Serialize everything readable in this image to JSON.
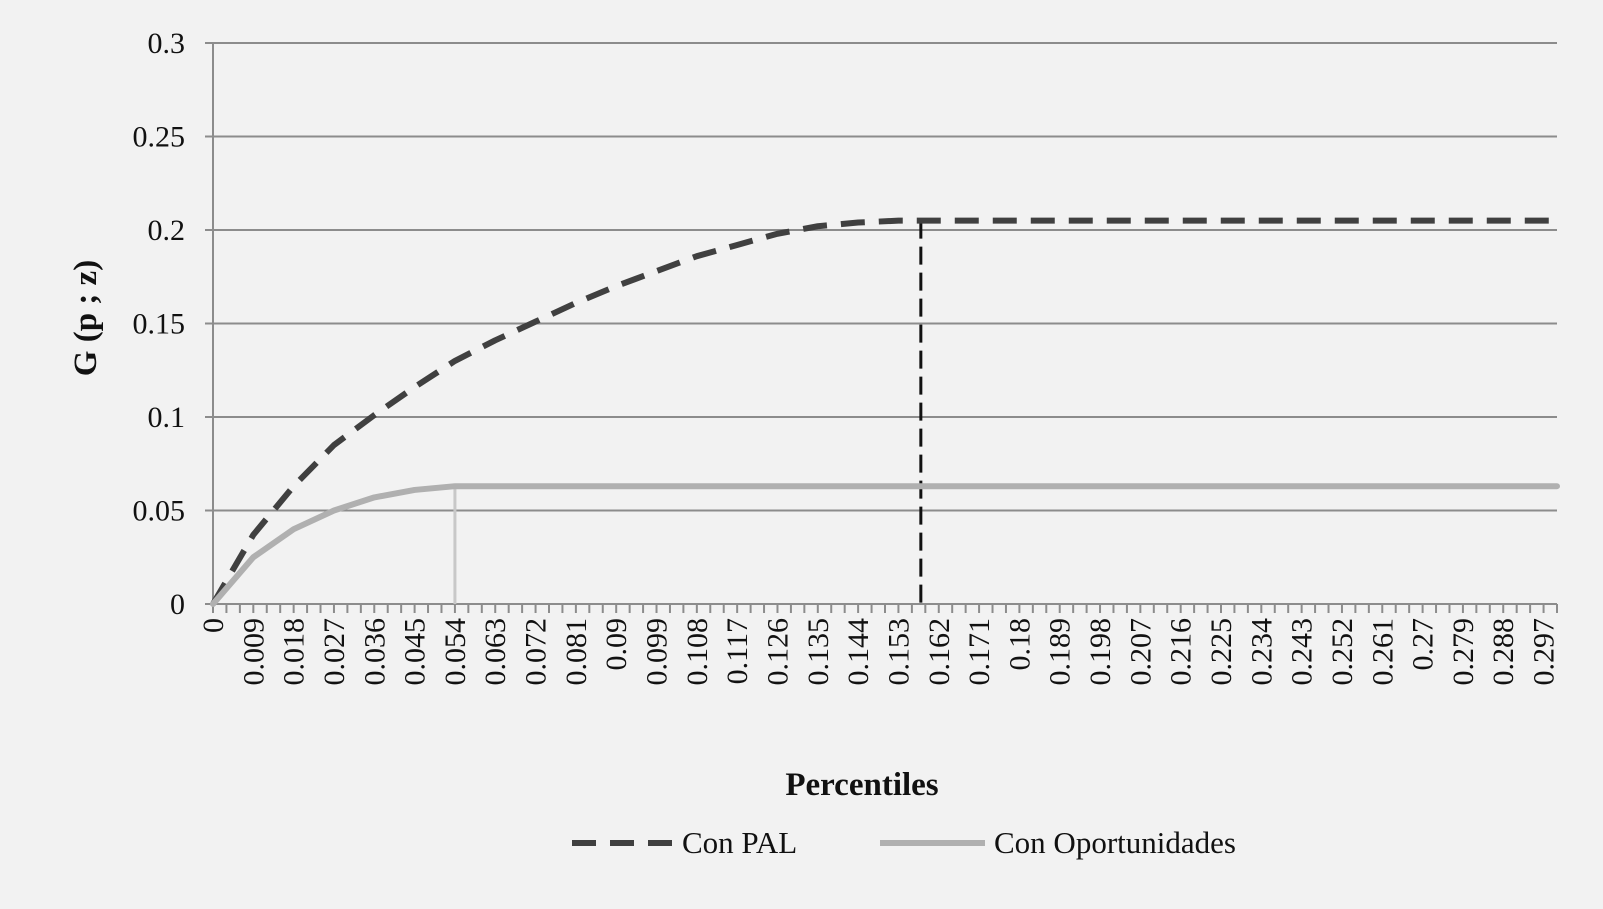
{
  "chart_data": {
    "type": "line",
    "title": "",
    "xlabel": "Percentiles",
    "ylabel": "G (p ; z)",
    "xlim": [
      0,
      0.3
    ],
    "ylim": [
      0,
      0.3
    ],
    "yticks": [
      0,
      0.05,
      0.1,
      0.15,
      0.2,
      0.25,
      0.3
    ],
    "ytick_labels": [
      "0",
      "0.05",
      "0.1",
      "0.15",
      "0.2",
      "0.25",
      "0.3"
    ],
    "xtick_labels": [
      "0",
      "0.009",
      "0.018",
      "0.027",
      "0.036",
      "0.045",
      "0.054",
      "0.063",
      "0.072",
      "0.081",
      "0.09",
      "0.099",
      "0.108",
      "0.117",
      "0.126",
      "0.135",
      "0.144",
      "0.153",
      "0.162",
      "0.171",
      "0.18",
      "0.189",
      "0.198",
      "0.207",
      "0.216",
      "0.225",
      "0.234",
      "0.243",
      "0.252",
      "0.261",
      "0.27",
      "0.279",
      "0.288",
      "0.297"
    ],
    "grid": "horizontal",
    "legend_position": "bottom",
    "series": [
      {
        "name": "Con PAL",
        "style": "dashed",
        "color": "#404040",
        "x": [
          0,
          0.009,
          0.018,
          0.027,
          0.036,
          0.045,
          0.054,
          0.063,
          0.072,
          0.081,
          0.09,
          0.099,
          0.108,
          0.117,
          0.126,
          0.135,
          0.144,
          0.153,
          0.162,
          0.18,
          0.2,
          0.22,
          0.24,
          0.26,
          0.28,
          0.3
        ],
        "y": [
          0,
          0.037,
          0.063,
          0.085,
          0.101,
          0.116,
          0.13,
          0.141,
          0.151,
          0.161,
          0.17,
          0.178,
          0.186,
          0.192,
          0.198,
          0.202,
          0.204,
          0.205,
          0.205,
          0.205,
          0.205,
          0.205,
          0.205,
          0.205,
          0.205,
          0.205
        ],
        "threshold_x": 0.158
      },
      {
        "name": "Con Oportunidades",
        "style": "solid",
        "color": "#b0b0b0",
        "x": [
          0,
          0.009,
          0.018,
          0.027,
          0.036,
          0.045,
          0.054,
          0.07,
          0.1,
          0.15,
          0.2,
          0.25,
          0.3
        ],
        "y": [
          0,
          0.025,
          0.04,
          0.05,
          0.057,
          0.061,
          0.063,
          0.063,
          0.063,
          0.063,
          0.063,
          0.063,
          0.063
        ],
        "threshold_x": 0.054
      }
    ]
  }
}
